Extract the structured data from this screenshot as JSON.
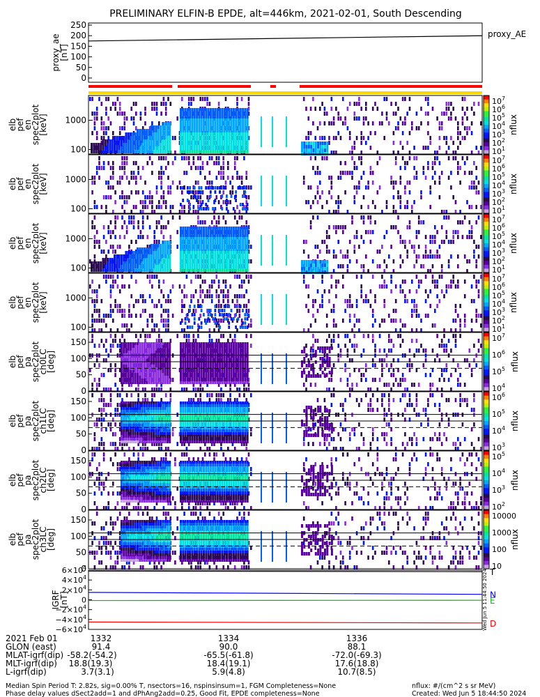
{
  "title": "PRELIMINARY ELFIN-B EPDE, alt=446km, 2021-02-01, South Descending",
  "colors": {
    "cmap": [
      "#f8f8f8",
      "#c8a0e0",
      "#8a2be2",
      "#5a00a0",
      "#2a0a50",
      "#0018ff",
      "#0060ff",
      "#00a8ff",
      "#00e0e0",
      "#00e8a0",
      "#30f040",
      "#c0f000",
      "#ffe000",
      "#ff8000",
      "#ff0000"
    ],
    "trace_T": "#000000",
    "trace_N": "#0000ff",
    "trace_E": "#00c000",
    "trace_D": "#ff0000",
    "bar_red": "#ff0000",
    "bar_yellow": "#ffd700"
  },
  "chart_data": [
    {
      "type": "line",
      "ylabel": "proxy_ae [nT]",
      "ylim": [
        -20,
        260
      ],
      "yticks": [
        "250",
        "200",
        "150",
        "100",
        "50",
        "0"
      ],
      "ytick_values": [
        250,
        200,
        150,
        100,
        50,
        0
      ],
      "legend": "proxy_AE",
      "x": [
        0,
        1
      ],
      "y": [
        175,
        200
      ]
    },
    {
      "type": "heatmap",
      "ylabel": [
        "elb",
        "pef",
        "en",
        "spec2plot",
        "[keV]"
      ],
      "yscale": "log",
      "yticks": [
        "1000",
        "100"
      ],
      "ytick_values": [
        1000,
        100
      ],
      "cbar_label": "nflux",
      "cbar_ticks": [
        "10^7",
        "10^6",
        "10^5",
        "10^4",
        "10^3",
        "10^2",
        "10^1"
      ]
    },
    {
      "type": "heatmap",
      "ylabel": [
        "elb",
        "pef",
        "en",
        "spec2plot",
        "[keV]"
      ],
      "yscale": "log",
      "yticks": [
        "1000",
        "100"
      ],
      "ytick_values": [
        1000,
        100
      ],
      "cbar_label": "nflux",
      "cbar_ticks": [
        "10^7",
        "10^6",
        "10^5",
        "10^4",
        "10^3",
        "10^2",
        "10^1"
      ]
    },
    {
      "type": "heatmap",
      "ylabel": [
        "elb",
        "pef",
        "en",
        "spec2plot",
        "[keV]"
      ],
      "yscale": "log",
      "yticks": [
        "1000",
        "100"
      ],
      "ytick_values": [
        1000,
        100
      ],
      "cbar_label": "nflux",
      "cbar_ticks": [
        "10^7",
        "10^6",
        "10^5",
        "10^4",
        "10^3",
        "10^2",
        "10^1"
      ]
    },
    {
      "type": "heatmap",
      "ylabel": [
        "elb",
        "pef",
        "en",
        "spec2plot",
        "[keV]"
      ],
      "yscale": "log",
      "yticks": [
        "1000",
        "100"
      ],
      "ytick_values": [
        1000,
        100
      ],
      "cbar_label": "nflux",
      "cbar_ticks": [
        "10^7",
        "10^6",
        "10^5",
        "10^4",
        "10^3",
        "10^2",
        "10^1"
      ]
    },
    {
      "type": "heatmap",
      "ylabel": [
        "elb",
        "pef",
        "pa",
        "spec2plot",
        "ch0LC",
        "[deg]"
      ],
      "yticks": [
        "150",
        "100",
        "50",
        "0"
      ],
      "ytick_values": [
        150,
        100,
        50,
        0
      ],
      "cbar_label": "nflux",
      "cbar_ticks": [
        "10^7",
        "10^6",
        "10^5",
        "10^4"
      ]
    },
    {
      "type": "heatmap",
      "ylabel": [
        "elb",
        "pef",
        "pa",
        "spec2plot",
        "ch1LC",
        "[deg]"
      ],
      "yticks": [
        "150",
        "100",
        "50",
        "0"
      ],
      "ytick_values": [
        150,
        100,
        50,
        0
      ],
      "cbar_label": "nflux",
      "cbar_ticks": [
        "10^6",
        "10^5",
        "10^4",
        "10^3"
      ]
    },
    {
      "type": "heatmap",
      "ylabel": [
        "elb",
        "pef",
        "pa",
        "spec2plot",
        "ch2LC",
        "[deg]"
      ],
      "yticks": [
        "150",
        "100",
        "50",
        "0"
      ],
      "ytick_values": [
        150,
        100,
        50,
        0
      ],
      "cbar_label": "nflux",
      "cbar_ticks": [
        "10^5",
        "10^4",
        "10^3",
        "10^2"
      ]
    },
    {
      "type": "heatmap",
      "ylabel": [
        "elb",
        "pef",
        "pa",
        "spec2plot",
        "ch3LC",
        "[deg]"
      ],
      "yticks": [
        "150",
        "100",
        "50",
        "0"
      ],
      "ytick_values": [
        150,
        100,
        50,
        0
      ],
      "cbar_label": "nflux",
      "cbar_ticks": [
        "10000",
        "1000",
        "100",
        "10"
      ]
    },
    {
      "type": "line",
      "ylabel": [
        "IGRF",
        "[nT]"
      ],
      "ylim": [
        -60000,
        60000
      ],
      "yticks": [
        "6×10^4",
        "4×10^4",
        "2×10^4",
        "0",
        "−2×10^4",
        "−4×10^4",
        "−6×10^4"
      ],
      "ytick_values": [
        60000,
        40000,
        20000,
        0,
        -20000,
        -40000,
        -60000
      ],
      "series": [
        {
          "name": "T",
          "values": [
            58000,
            57000
          ]
        },
        {
          "name": "N",
          "values": [
            15000,
            11000
          ]
        },
        {
          "name": "E",
          "values": [
            -1500,
            -1000
          ]
        },
        {
          "name": "D",
          "values": [
            -45000,
            -47000
          ]
        }
      ],
      "watermark": "Wed Jun  5 11:44:50 2024"
    }
  ],
  "xaxis": {
    "rows": [
      {
        "label": "2021 Feb 01",
        "values": [
          "1332",
          "1334",
          "1336"
        ]
      },
      {
        "label": "GLON (east)",
        "values": [
          "91.4",
          "90.0",
          "88.1"
        ]
      },
      {
        "label": "MLAT-igrf(dip)",
        "values": [
          "-58.2(-54.2)",
          "-65.5(-61.8)",
          "-72.0(-69.3)"
        ]
      },
      {
        "label": "MLT-igrf(dip)",
        "values": [
          "18.8(19.3)",
          "18.4(19.1)",
          "17.6(18.8)"
        ]
      },
      {
        "label": "L-igrf(dip)",
        "values": [
          "3.7(3.1)",
          "5.9(4.8)",
          "10.7(8.5)"
        ]
      }
    ]
  },
  "footer": {
    "line1": "Median Spin Period T: 2.82s, sig=0.00% T, nsectors=16, nspinsinsum=1, FGM Completeness=None",
    "line2": "Phase delay values dSect2add=1 and dPhAng2add=0.25, Good Fit, EPDE completeness=None",
    "units": "nflux: #/(cm^2 s sr MeV)",
    "created": "Created: Wed Jun  5 18:44:50 2024"
  }
}
